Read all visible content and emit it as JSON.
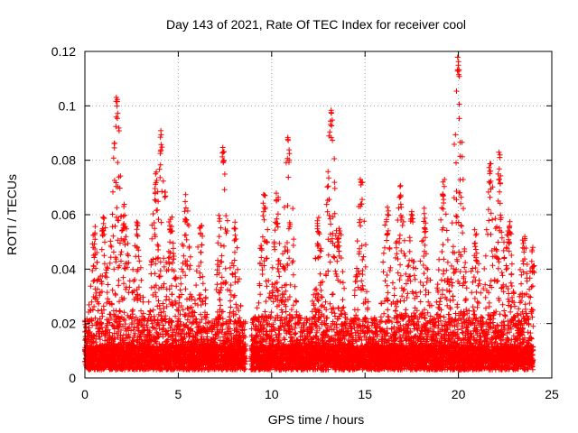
{
  "chart_data": {
    "type": "scatter",
    "title": "Day 143 of 2021, Rate Of TEC Index for receiver cool",
    "xlabel": "GPS time / hours",
    "ylabel": "ROTI / TECUs",
    "xlim": [
      0,
      25
    ],
    "ylim": [
      0,
      0.12
    ],
    "xticks": [
      0,
      5,
      10,
      15,
      20,
      25
    ],
    "xtick_labels": [
      "0",
      "5",
      "10",
      "15",
      "20",
      "25"
    ],
    "yticks": [
      0,
      0.02,
      0.04,
      0.06,
      0.08,
      0.1,
      0.12
    ],
    "ytick_labels": [
      "0",
      "0.02",
      "0.04",
      "0.06",
      "0.08",
      "0.1",
      "0.12"
    ],
    "grid": true,
    "marker": "+",
    "marker_color": "#ff0000",
    "series": [
      {
        "name": "ROTI",
        "x_range": [
          0,
          24
        ],
        "gap": [
          8.6,
          8.9
        ],
        "baseline_band": [
          0.003,
          0.012
        ],
        "peaks": [
          {
            "x": 0.5,
            "y": 0.056
          },
          {
            "x": 1.0,
            "y": 0.063
          },
          {
            "x": 1.7,
            "y": 0.106
          },
          {
            "x": 2.1,
            "y": 0.066
          },
          {
            "x": 2.8,
            "y": 0.058
          },
          {
            "x": 3.8,
            "y": 0.076
          },
          {
            "x": 4.1,
            "y": 0.091
          },
          {
            "x": 4.6,
            "y": 0.061
          },
          {
            "x": 5.4,
            "y": 0.069
          },
          {
            "x": 6.2,
            "y": 0.057
          },
          {
            "x": 7.4,
            "y": 0.085
          },
          {
            "x": 8.0,
            "y": 0.058
          },
          {
            "x": 9.6,
            "y": 0.068
          },
          {
            "x": 10.3,
            "y": 0.068
          },
          {
            "x": 10.9,
            "y": 0.09
          },
          {
            "x": 12.5,
            "y": 0.06
          },
          {
            "x": 13.2,
            "y": 0.099
          },
          {
            "x": 13.6,
            "y": 0.058
          },
          {
            "x": 14.8,
            "y": 0.073
          },
          {
            "x": 16.2,
            "y": 0.064
          },
          {
            "x": 16.9,
            "y": 0.073
          },
          {
            "x": 17.5,
            "y": 0.064
          },
          {
            "x": 18.2,
            "y": 0.063
          },
          {
            "x": 19.2,
            "y": 0.073
          },
          {
            "x": 20.0,
            "y": 0.12
          },
          {
            "x": 20.9,
            "y": 0.055
          },
          {
            "x": 21.7,
            "y": 0.079
          },
          {
            "x": 22.2,
            "y": 0.083
          },
          {
            "x": 22.7,
            "y": 0.06
          },
          {
            "x": 23.5,
            "y": 0.053
          },
          {
            "x": 24.0,
            "y": 0.049
          }
        ]
      }
    ]
  }
}
